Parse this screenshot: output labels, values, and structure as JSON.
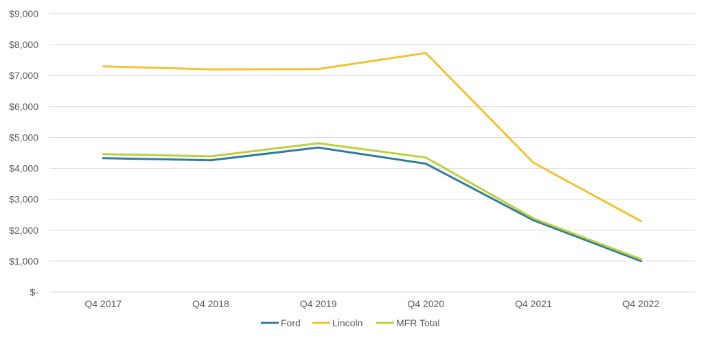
{
  "chart_data": {
    "type": "line",
    "categories": [
      "Q4 2017",
      "Q4 2018",
      "Q4 2019",
      "Q4 2020",
      "Q4 2021",
      "Q4 2022"
    ],
    "ylim": [
      0,
      9000
    ],
    "yticks": [
      {
        "value": 0,
        "label": "$-"
      },
      {
        "value": 1000,
        "label": "$1,000"
      },
      {
        "value": 2000,
        "label": "$2,000"
      },
      {
        "value": 3000,
        "label": "$3,000"
      },
      {
        "value": 4000,
        "label": "$4,000"
      },
      {
        "value": 5000,
        "label": "$5,000"
      },
      {
        "value": 6000,
        "label": "$6,000"
      },
      {
        "value": 7000,
        "label": "$7,000"
      },
      {
        "value": 8000,
        "label": "$8,000"
      },
      {
        "value": 9000,
        "label": "$9,000"
      }
    ],
    "grid": true,
    "legend_position": "bottom",
    "series": [
      {
        "name": "Ford",
        "color": "#2e7d9a",
        "values": [
          4330,
          4260,
          4670,
          4150,
          2320,
          1000
        ]
      },
      {
        "name": "Lincoln",
        "color": "#f2c232",
        "values": [
          7300,
          7200,
          7210,
          7730,
          4180,
          2290
        ]
      },
      {
        "name": "MFR Total",
        "color": "#b9d23c",
        "values": [
          4460,
          4390,
          4810,
          4350,
          2380,
          1060
        ]
      }
    ]
  }
}
